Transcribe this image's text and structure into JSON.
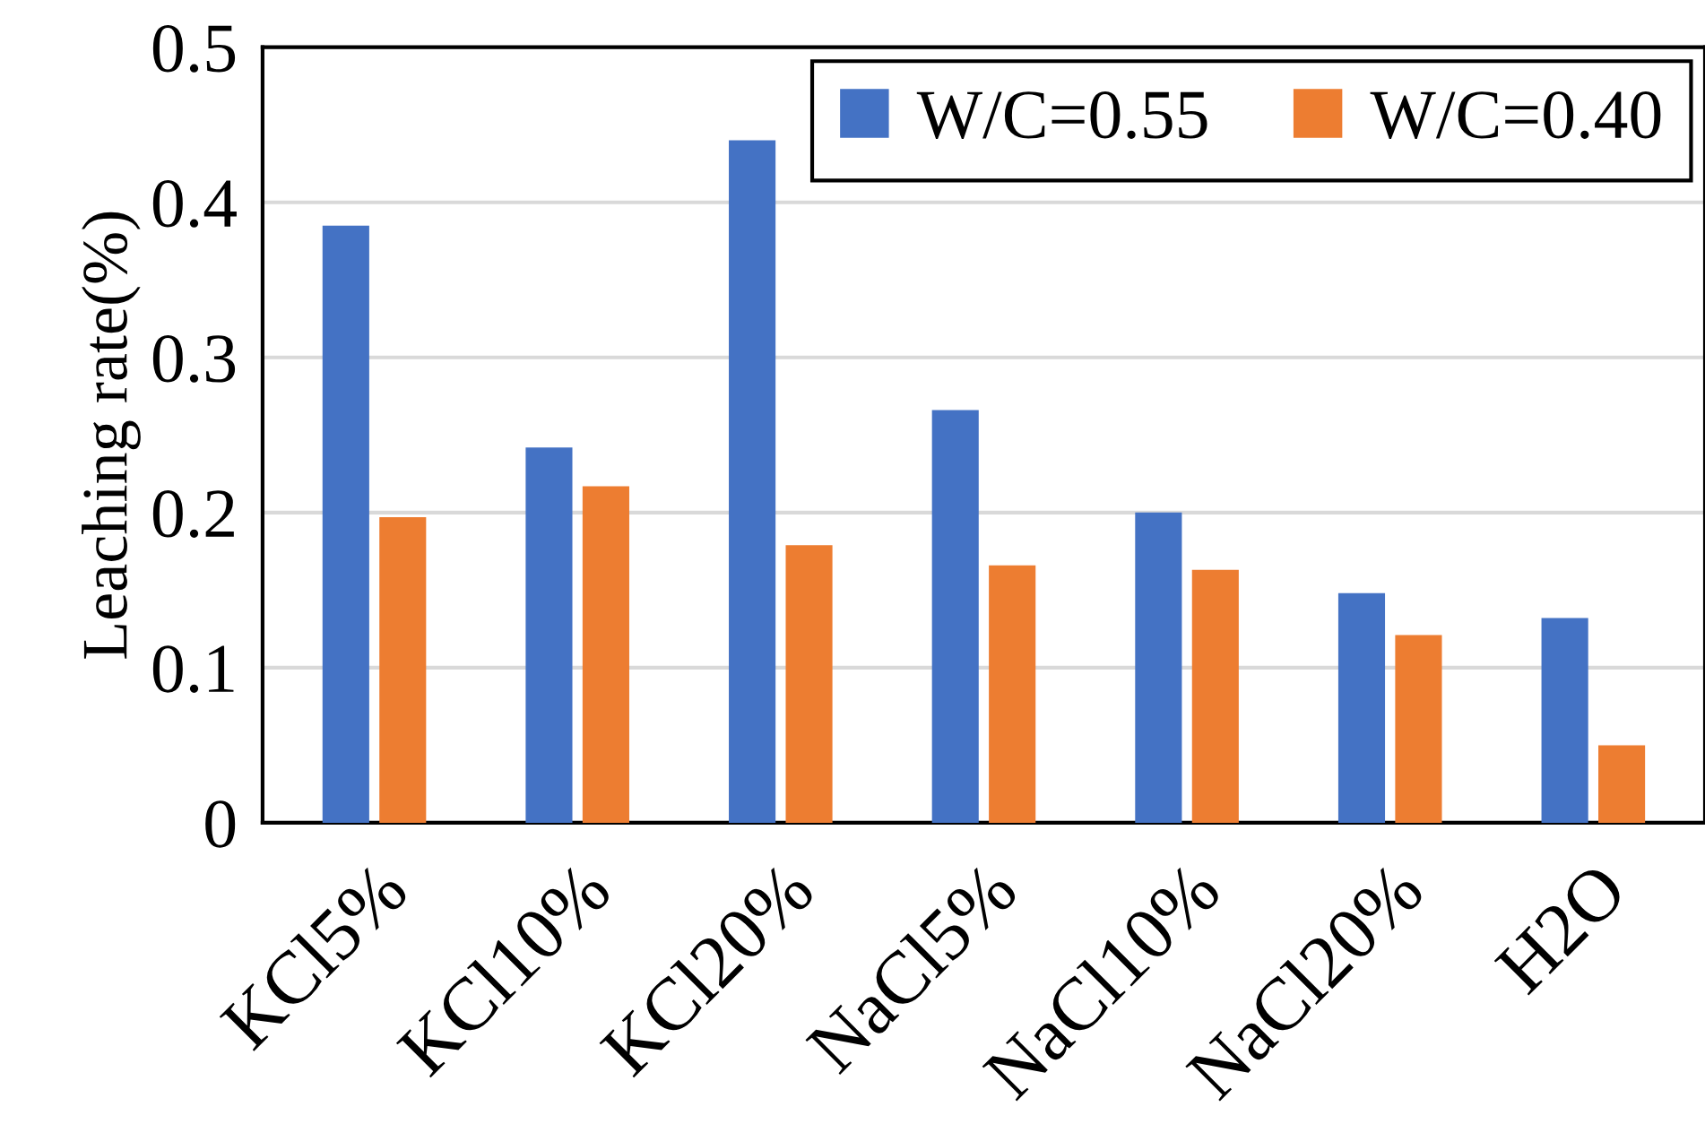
{
  "chart_data": {
    "type": "bar",
    "ylabel": "Leaching rate(%)",
    "categories": [
      "KCl5%",
      "KCl10%",
      "KCl20%",
      "NaCl5%",
      "NaCl10%",
      "NaCl20%",
      "H2O"
    ],
    "series": [
      {
        "name": "W/C=0.55",
        "color": "#4472c4",
        "values": [
          0.385,
          0.242,
          0.44,
          0.266,
          0.2,
          0.148,
          0.132
        ]
      },
      {
        "name": "W/C=0.40",
        "color": "#ed7d31",
        "values": [
          0.197,
          0.217,
          0.179,
          0.166,
          0.163,
          0.121,
          0.05
        ]
      }
    ],
    "ylim": [
      0,
      0.5
    ],
    "yticks": [
      {
        "value": 0,
        "label": "0"
      },
      0.1,
      0.2,
      0.3,
      0.4,
      0.5
    ],
    "grid": "y",
    "legend": "top right"
  }
}
